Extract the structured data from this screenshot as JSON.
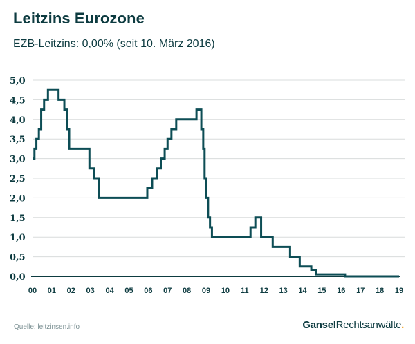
{
  "title": "Leitzins Eurozone",
  "subtitle": "EZB-Leitzins: 0,00% (seit 10. März 2016)",
  "source": "Quelle: leitzinsen.info",
  "logo": {
    "part1": "Gansel",
    "part2": "Rechtsanwälte",
    "dot": "."
  },
  "colors": {
    "line": "#0d4d55",
    "text": "#0d3b40",
    "grid": "#d8dcdc",
    "accent": "#f0a020"
  },
  "chart_data": {
    "type": "line",
    "step": true,
    "ylim": [
      0,
      5
    ],
    "xlim": [
      2000,
      2019
    ],
    "grid": "horizontal",
    "yticks": [
      "0,0",
      "0,5",
      "1,0",
      "1,5",
      "2,0",
      "2,5",
      "3,0",
      "3,5",
      "4,0",
      "4,5",
      "5,0"
    ],
    "xticks": [
      "00",
      "01",
      "02",
      "03",
      "04",
      "05",
      "06",
      "07",
      "08",
      "09",
      "10",
      "11",
      "12",
      "13",
      "14",
      "15",
      "16",
      "17",
      "18",
      "19"
    ],
    "series": [
      {
        "x": [
          2000.0,
          2000.1,
          2000.2,
          2000.33,
          2000.45,
          2000.6,
          2000.8,
          2001.35,
          2001.65,
          2001.8,
          2001.9,
          2002.95,
          2003.2,
          2003.45,
          2005.95,
          2006.2,
          2006.45,
          2006.65,
          2006.85,
          2007.0,
          2007.2,
          2007.45,
          2008.5,
          2008.75,
          2008.85,
          2008.92,
          2009.0,
          2009.1,
          2009.2,
          2009.3,
          2011.3,
          2011.55,
          2011.85,
          2012.45,
          2013.35,
          2013.85,
          2014.45,
          2014.7,
          2015.0,
          2016.2,
          2019.0
        ],
        "y": [
          3.0,
          3.25,
          3.5,
          3.75,
          4.25,
          4.5,
          4.75,
          4.5,
          4.25,
          3.75,
          3.25,
          2.75,
          2.5,
          2.0,
          2.25,
          2.5,
          2.75,
          3.0,
          3.25,
          3.5,
          3.75,
          4.0,
          4.25,
          3.75,
          3.25,
          2.5,
          2.0,
          1.5,
          1.25,
          1.0,
          1.25,
          1.5,
          1.0,
          0.75,
          0.5,
          0.25,
          0.15,
          0.05,
          0.05,
          0.0,
          0.0
        ]
      }
    ]
  }
}
